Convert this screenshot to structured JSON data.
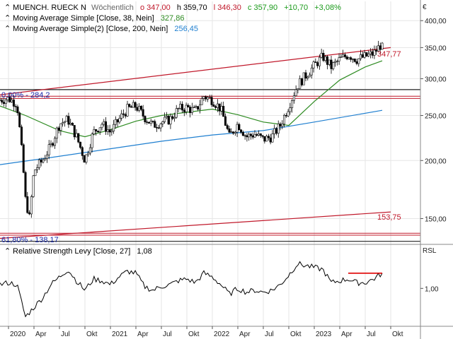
{
  "header": {
    "symbol": "MUENCH. RUECK N",
    "interval": "Wöchentlich",
    "open": "o 347,00",
    "high": "h 359,70",
    "low": "l 346,30",
    "close": "c 357,90",
    "change_abs": "+10,70",
    "change_pct": "+3,08%",
    "ma1_label": "Moving Average Simple  [Close, 38, Nein]",
    "ma1_value": "327,86",
    "ma2_label": "Moving Average Simple(2)  [Close, 200, Nein]",
    "ma2_value": "256,45",
    "rsl_label": "Relative Strength Levy  [Close, 27]",
    "rsl_value": "1,08"
  },
  "annotations": {
    "fib0": "0,00% - 284,2",
    "fib61": "61,80% - 138,17",
    "channel_upper": "347,77",
    "channel_lower": "153,75"
  },
  "colors": {
    "candle": "#000000",
    "ma38": "#2e8b22",
    "ma200": "#1f7fd0",
    "channel": "#c0182a",
    "fib_text": "#1a2aa8",
    "rsl": "#000000",
    "rsl_marker": "#e00000",
    "header_up": "#1a9a1a",
    "header_red": "#c0182a"
  },
  "chart_data": {
    "type": "candlestick",
    "title": "MUENCH. RUECK N",
    "y_axis": {
      "scale": "log",
      "range": [
        132,
        440
      ],
      "ticks": [
        150,
        200,
        250,
        300,
        350,
        400
      ],
      "tick_labels": [
        "150,00",
        "200,00",
        "250,00",
        "300,00",
        "350,00",
        "400,00"
      ],
      "unit": "€"
    },
    "x_axis": {
      "ticks": [
        "2020",
        "Apr",
        "Jul",
        "Okt",
        "2021",
        "Apr",
        "Jul",
        "Okt",
        "2022",
        "Apr",
        "Jul",
        "Okt",
        "2023",
        "Apr",
        "Jul",
        "Okt"
      ],
      "tick_dates": [
        "2020-01",
        "2020-04",
        "2020-07",
        "2020-10",
        "2021-01",
        "2021-04",
        "2021-07",
        "2021-10",
        "2022-01",
        "2022-04",
        "2022-07",
        "2022-10",
        "2023-01",
        "2023-04",
        "2023-07",
        "2023-10"
      ]
    },
    "close_path": [
      [
        "2019-12",
        270
      ],
      [
        "2020-01",
        272
      ],
      [
        "2020-02",
        265
      ],
      [
        "2020-03",
        165
      ],
      [
        "2020-03",
        150
      ],
      [
        "2020-04",
        190
      ],
      [
        "2020-05",
        200
      ],
      [
        "2020-06",
        215
      ],
      [
        "2020-07",
        240
      ],
      [
        "2020-08",
        245
      ],
      [
        "2020-09",
        225
      ],
      [
        "2020-10",
        200
      ],
      [
        "2020-11",
        230
      ],
      [
        "2020-12",
        240
      ],
      [
        "2021-01",
        230
      ],
      [
        "2021-02",
        245
      ],
      [
        "2021-03",
        258
      ],
      [
        "2021-04",
        262
      ],
      [
        "2021-05",
        248
      ],
      [
        "2021-06",
        238
      ],
      [
        "2021-07",
        242
      ],
      [
        "2021-08",
        245
      ],
      [
        "2021-09",
        258
      ],
      [
        "2021-10",
        260
      ],
      [
        "2021-11",
        255
      ],
      [
        "2021-12",
        275
      ],
      [
        "2022-01",
        270
      ],
      [
        "2022-02",
        258
      ],
      [
        "2022-03",
        225
      ],
      [
        "2022-04",
        240
      ],
      [
        "2022-05",
        225
      ],
      [
        "2022-06",
        228
      ],
      [
        "2022-07",
        222
      ],
      [
        "2022-08",
        225
      ],
      [
        "2022-09",
        238
      ],
      [
        "2022-10",
        262
      ],
      [
        "2022-11",
        290
      ],
      [
        "2022-12",
        305
      ],
      [
        "2023-01",
        320
      ],
      [
        "2023-02",
        335
      ],
      [
        "2023-03",
        318
      ],
      [
        "2023-04",
        330
      ],
      [
        "2023-05",
        338
      ],
      [
        "2023-06",
        330
      ],
      [
        "2023-07",
        335
      ],
      [
        "2023-08",
        340
      ],
      [
        "2023-09",
        357.9
      ]
    ],
    "last_candle": {
      "open": 347.0,
      "high": 359.7,
      "low": 346.3,
      "close": 357.9
    },
    "series": [
      {
        "name": "Moving Average Simple [Close, 38, Nein]",
        "last": 327.86,
        "values": [
          [
            "2019-12",
            262
          ],
          [
            "2020-03",
            250
          ],
          [
            "2020-07",
            232
          ],
          [
            "2020-10",
            225
          ],
          [
            "2021-01",
            233
          ],
          [
            "2021-04",
            243
          ],
          [
            "2021-07",
            250
          ],
          [
            "2021-10",
            254
          ],
          [
            "2022-01",
            258
          ],
          [
            "2022-04",
            251
          ],
          [
            "2022-07",
            242
          ],
          [
            "2022-10",
            238
          ],
          [
            "2023-01",
            268
          ],
          [
            "2023-04",
            298
          ],
          [
            "2023-07",
            318
          ],
          [
            "2023-09",
            327.86
          ]
        ]
      },
      {
        "name": "Moving Average Simple(2) [Close, 200, Nein]",
        "last": 256.45,
        "values": [
          [
            "2019-12",
            196
          ],
          [
            "2020-06",
            203
          ],
          [
            "2021-01",
            212
          ],
          [
            "2021-07",
            220
          ],
          [
            "2022-01",
            227
          ],
          [
            "2022-07",
            232
          ],
          [
            "2023-01",
            242
          ],
          [
            "2023-09",
            256.45
          ]
        ]
      }
    ],
    "lines": [
      {
        "kind": "trend-channel-upper",
        "from": [
          "2019-12",
          277
        ],
        "to": [
          "2023-10",
          350
        ],
        "label": "347,77"
      },
      {
        "kind": "trend-channel-lower",
        "from": [
          "2019-12",
          136
        ],
        "to": [
          "2023-10",
          155
        ],
        "label": "153,75"
      },
      {
        "kind": "horizontal",
        "value": 284.2,
        "label": "0,00% - 284,2"
      },
      {
        "kind": "horizontal",
        "value": 275
      },
      {
        "kind": "horizontal",
        "value": 272
      },
      {
        "kind": "horizontal",
        "value": 139.5
      },
      {
        "kind": "horizontal",
        "value": 138.17
      },
      {
        "kind": "horizontal",
        "value": 134,
        "label": "61,80% - 138,17"
      }
    ],
    "indicator": {
      "name": "Relative Strength Levy [Close, 27]",
      "last": 1.08,
      "y_axis": {
        "label": "RSL",
        "ticks": [
          1.0
        ],
        "tick_labels": [
          "1,00"
        ]
      },
      "values": [
        [
          "2019-12",
          1.02
        ],
        [
          "2020-01",
          1.03
        ],
        [
          "2020-02",
          1.02
        ],
        [
          "2020-03",
          0.85
        ],
        [
          "2020-04",
          0.9
        ],
        [
          "2020-05",
          0.95
        ],
        [
          "2020-06",
          1.02
        ],
        [
          "2020-07",
          1.06
        ],
        [
          "2020-08",
          1.1
        ],
        [
          "2020-09",
          1.04
        ],
        [
          "2020-10",
          0.99
        ],
        [
          "2020-11",
          1.05
        ],
        [
          "2020-12",
          1.04
        ],
        [
          "2021-01",
          1.02
        ],
        [
          "2021-02",
          1.06
        ],
        [
          "2021-03",
          1.09
        ],
        [
          "2021-04",
          1.08
        ],
        [
          "2021-05",
          1.01
        ],
        [
          "2021-06",
          0.99
        ],
        [
          "2021-07",
          1.01
        ],
        [
          "2021-08",
          1.02
        ],
        [
          "2021-09",
          1.04
        ],
        [
          "2021-10",
          1.05
        ],
        [
          "2021-11",
          1.03
        ],
        [
          "2021-12",
          1.08
        ],
        [
          "2022-01",
          1.06
        ],
        [
          "2022-02",
          1.02
        ],
        [
          "2022-03",
          0.97
        ],
        [
          "2022-04",
          1.0
        ],
        [
          "2022-05",
          0.98
        ],
        [
          "2022-06",
          0.99
        ],
        [
          "2022-07",
          0.98
        ],
        [
          "2022-08",
          0.99
        ],
        [
          "2022-09",
          1.02
        ],
        [
          "2022-10",
          1.07
        ],
        [
          "2022-11",
          1.13
        ],
        [
          "2022-12",
          1.12
        ],
        [
          "2023-01",
          1.11
        ],
        [
          "2023-02",
          1.1
        ],
        [
          "2023-03",
          1.03
        ],
        [
          "2023-04",
          1.04
        ],
        [
          "2023-05",
          1.05
        ],
        [
          "2023-06",
          1.03
        ],
        [
          "2023-07",
          1.03
        ],
        [
          "2023-08",
          1.05
        ],
        [
          "2023-09",
          1.08
        ]
      ],
      "marker": {
        "from": [
          "2023-05",
          1.08
        ],
        "to": [
          "2023-09",
          1.08
        ]
      }
    }
  }
}
